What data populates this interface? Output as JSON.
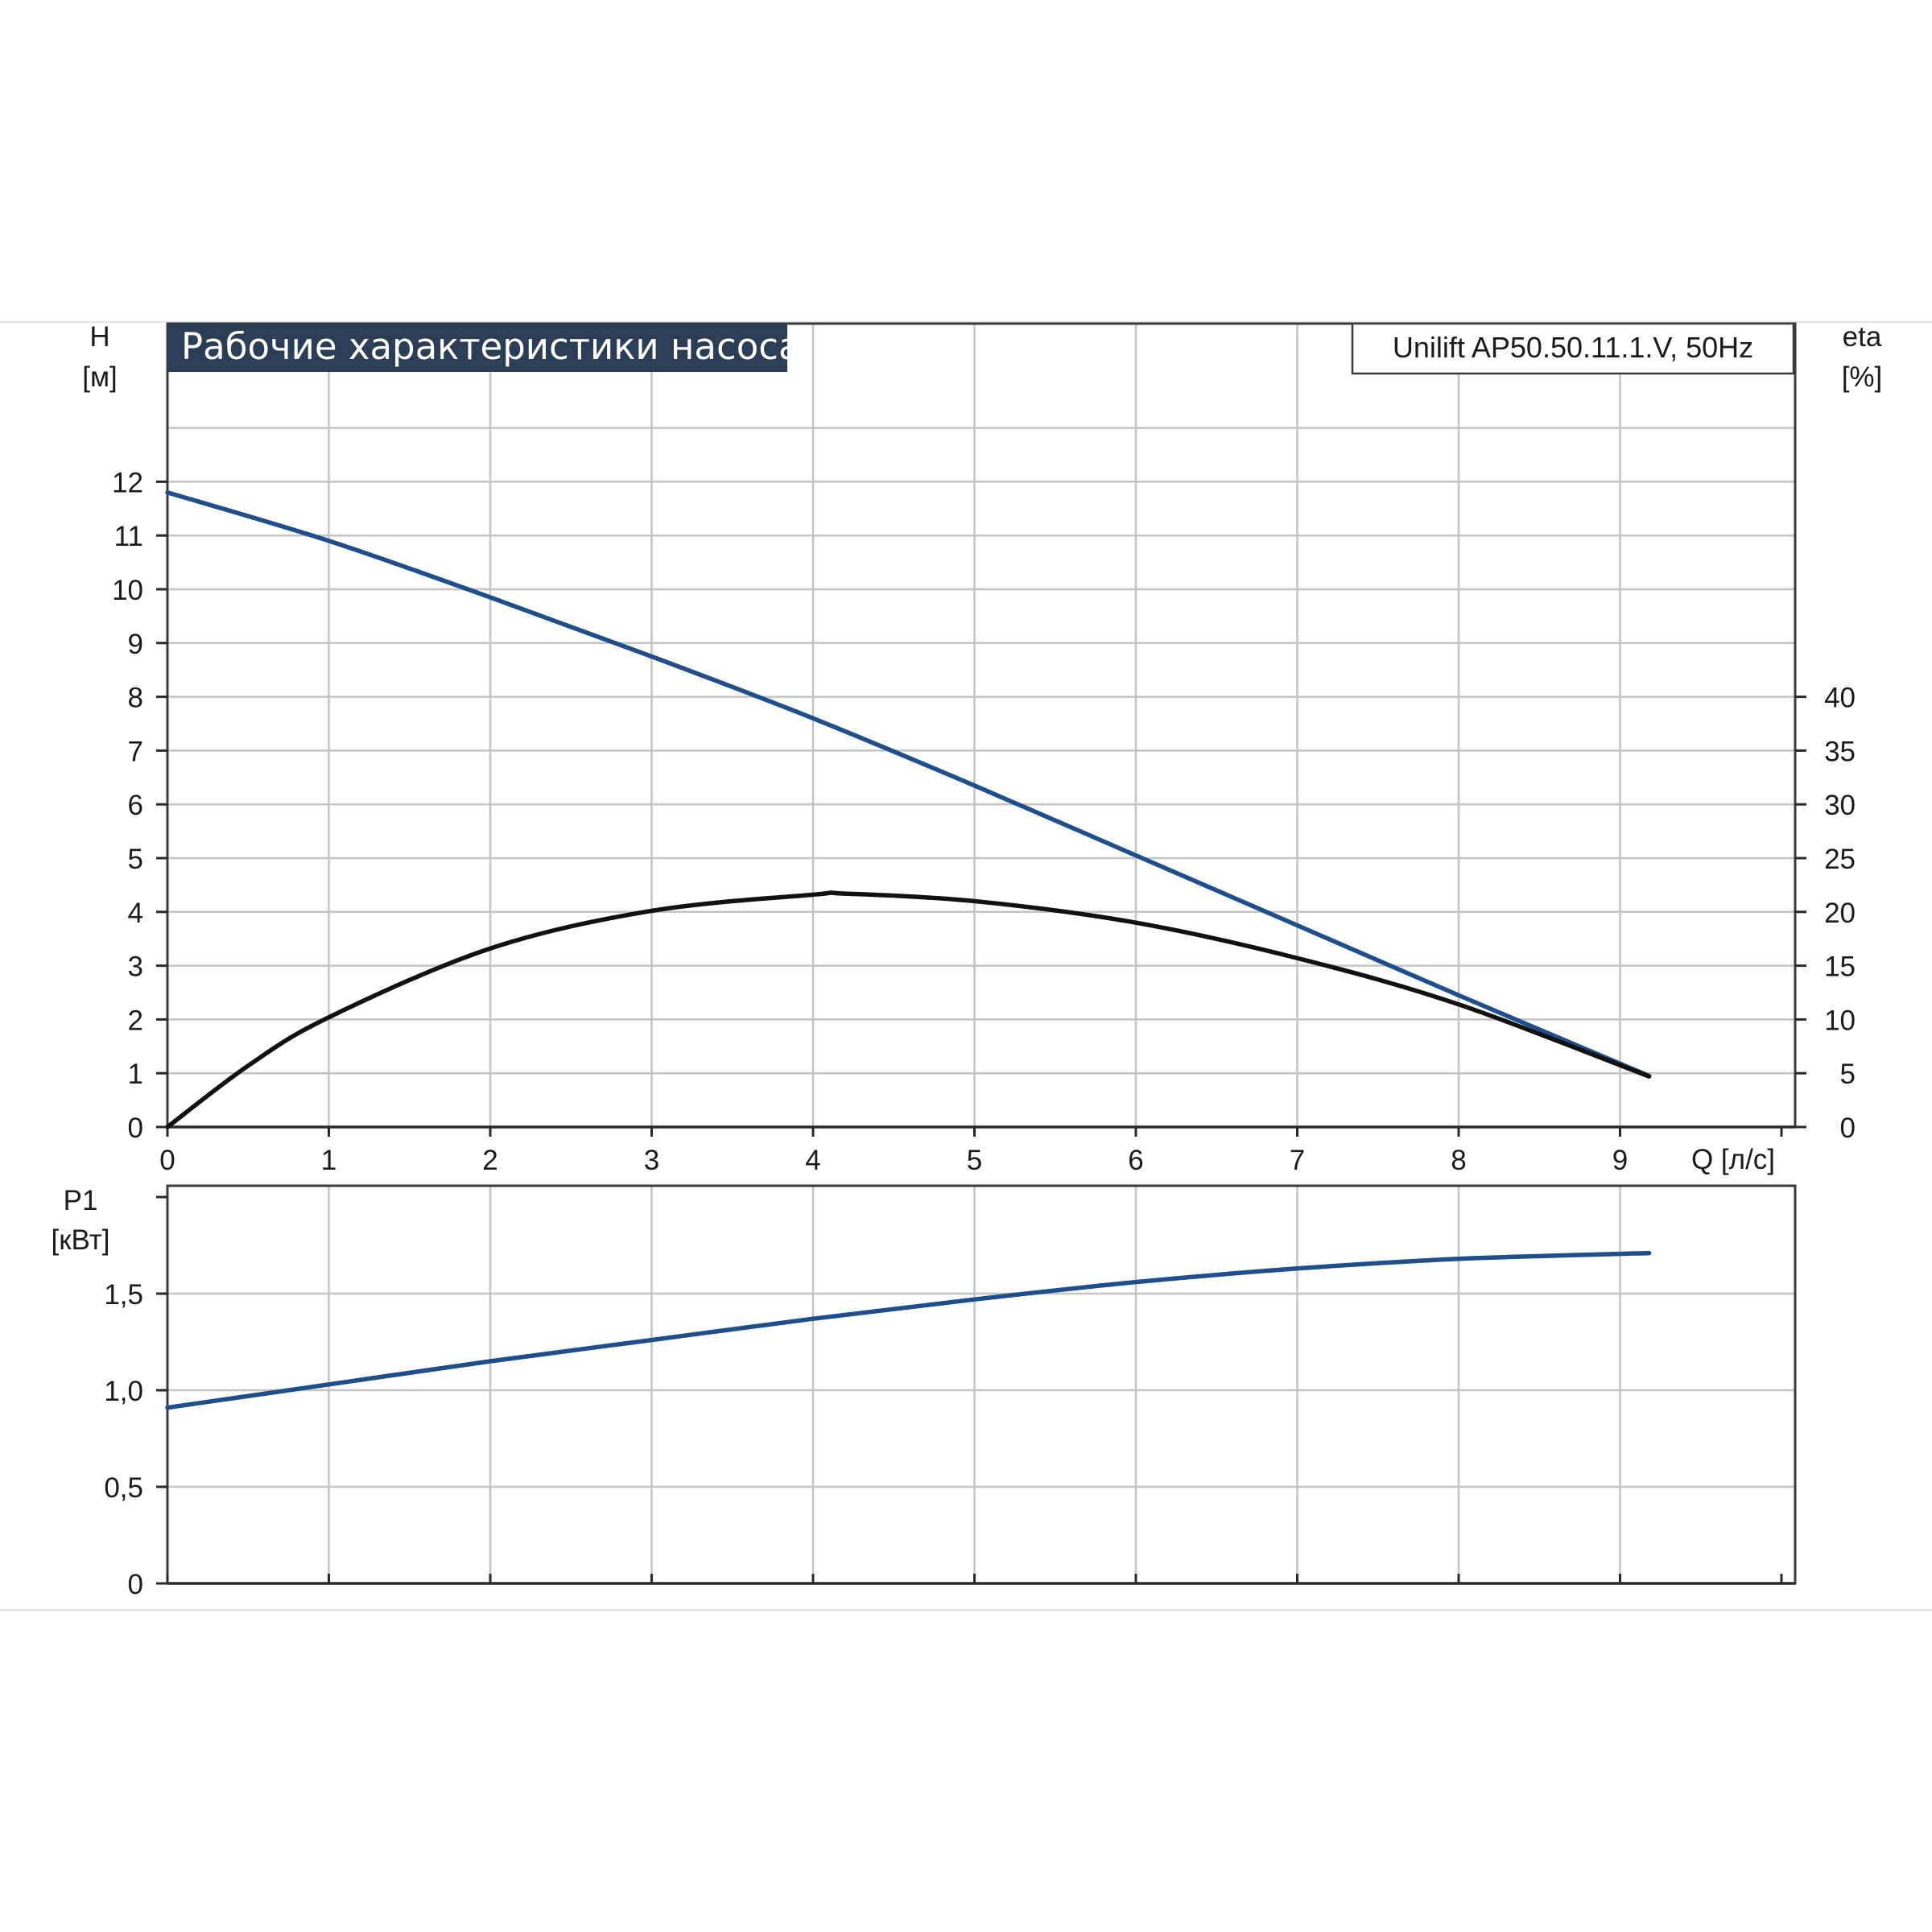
{
  "chart_data": [
    {
      "type": "line",
      "panel": "head-efficiency",
      "title": "Рабочие характеристики насоса",
      "model_label": "Unilift AP50.50.11.1.V, 50Hz",
      "ylabel": "H",
      "yunit": "[м]",
      "y2label": "eta",
      "y2unit": "[%]",
      "xlabel": "Q [л/с]",
      "xlim": [
        0,
        10
      ],
      "ylim": [
        0,
        14
      ],
      "y2lim": [
        0,
        70
      ],
      "x_ticks": [
        "0",
        "1",
        "2",
        "3",
        "4",
        "5",
        "6",
        "7",
        "8",
        "9"
      ],
      "y_ticks": [
        "0",
        "1",
        "2",
        "3",
        "4",
        "5",
        "6",
        "7",
        "8",
        "9",
        "10",
        "11",
        "12"
      ],
      "y2_ticks": [
        "0",
        "5",
        "10",
        "15",
        "20",
        "25",
        "30",
        "35",
        "40"
      ],
      "grid": true,
      "series": [
        {
          "axis": "left",
          "color": "#1f4e8c",
          "x": [
            0,
            1,
            2,
            3,
            4,
            5,
            6,
            7,
            8,
            9.18
          ],
          "y": [
            11.8,
            10.9,
            9.85,
            8.75,
            7.6,
            6.35,
            5.05,
            3.75,
            2.45,
            0.95
          ]
        },
        {
          "axis": "right",
          "color": "#111111",
          "x": [
            0,
            0.5,
            1,
            2,
            3,
            4,
            4.2,
            5,
            6,
            7,
            8,
            9.18
          ],
          "y": [
            0,
            5.7,
            10.2,
            16.6,
            20.1,
            21.6,
            21.7,
            21.0,
            19.0,
            15.7,
            11.4,
            4.7
          ]
        }
      ]
    },
    {
      "type": "line",
      "panel": "power",
      "ylabel": "P1",
      "yunit": "[кВт]",
      "xlim": [
        0,
        10
      ],
      "ylim": [
        0,
        2.05
      ],
      "y_ticks": [
        "0",
        "0,5",
        "1,0",
        "1,5"
      ],
      "grid": true,
      "series": [
        {
          "axis": "left",
          "color": "#1f4e8c",
          "x": [
            0,
            1,
            2,
            3,
            4,
            5,
            6,
            7,
            8,
            9.18
          ],
          "y": [
            0.91,
            1.03,
            1.15,
            1.26,
            1.37,
            1.47,
            1.56,
            1.63,
            1.68,
            1.71
          ]
        }
      ]
    }
  ]
}
